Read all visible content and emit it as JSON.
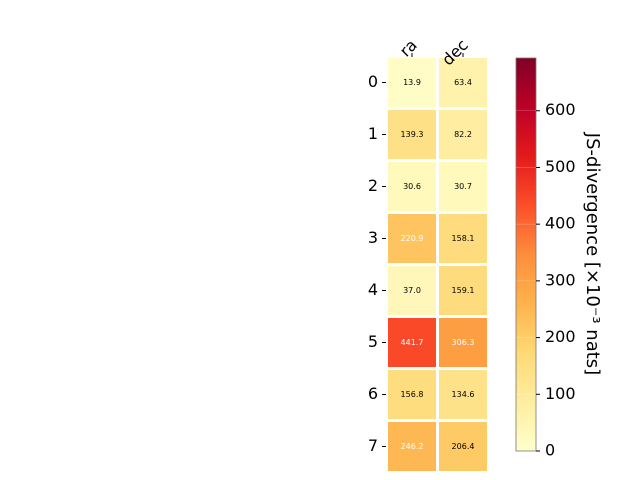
{
  "chart_data": {
    "type": "heatmap",
    "columns": [
      "ra",
      "dec"
    ],
    "rows": [
      "0",
      "1",
      "2",
      "3",
      "4",
      "5",
      "6",
      "7"
    ],
    "values": [
      [
        13.9,
        63.4
      ],
      [
        139.3,
        82.2
      ],
      [
        30.6,
        30.7
      ],
      [
        220.9,
        158.1
      ],
      [
        37.0,
        159.1
      ],
      [
        441.7,
        306.3
      ],
      [
        156.8,
        134.6
      ],
      [
        246.2,
        206.4
      ]
    ],
    "value_labels": [
      [
        "13.9",
        "63.4"
      ],
      [
        "139.3",
        "82.2"
      ],
      [
        "30.6",
        "30.7"
      ],
      [
        "220.9",
        "158.1"
      ],
      [
        "37.0",
        "159.1"
      ],
      [
        "441.7",
        "306.3"
      ],
      [
        "156.8",
        "134.6"
      ],
      [
        "246.2",
        "206.4"
      ]
    ],
    "colorbar": {
      "label": "JS-divergence [×10⁻³ nats]",
      "min": 0,
      "max": 693,
      "ticks": [
        0,
        100,
        200,
        300,
        400,
        500,
        600
      ],
      "tick_labels": [
        "0",
        "100",
        "200",
        "300",
        "400",
        "500",
        "600"
      ],
      "colormap": "YlOrRd"
    },
    "grid": false
  }
}
